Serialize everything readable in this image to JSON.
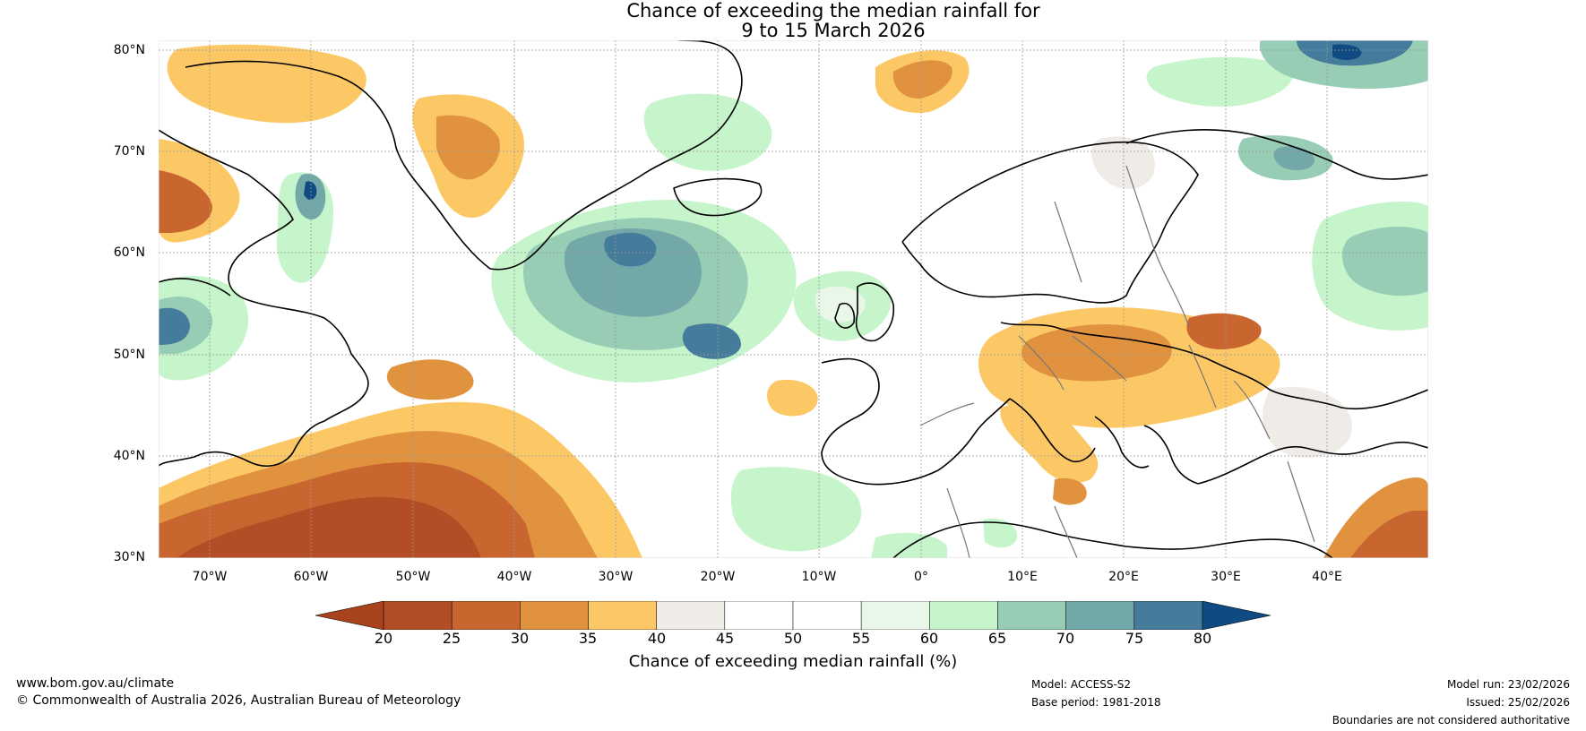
{
  "header": {
    "title_line1": "Chance of exceeding the median rainfall for",
    "title_line2": "9 to 15 March 2026"
  },
  "map": {
    "lat_labels": [
      "80°N",
      "70°N",
      "60°N",
      "50°N",
      "40°N",
      "30°N"
    ],
    "lon_labels": [
      "70°W",
      "60°W",
      "50°W",
      "40°W",
      "30°W",
      "20°W",
      "10°W",
      "0°",
      "10°E",
      "20°E",
      "30°E",
      "40°E"
    ],
    "lat_range": [
      30,
      80
    ],
    "lon_range": [
      -75,
      50
    ]
  },
  "colorbar": {
    "ticks": [
      "20",
      "25",
      "30",
      "35",
      "40",
      "45",
      "50",
      "55",
      "60",
      "65",
      "70",
      "75",
      "80"
    ],
    "colors": [
      "#a8431e",
      "#b34d25",
      "#c9662f",
      "#e0923f",
      "#fcc866",
      "#efebe7",
      "#ffffff",
      "#ffffff",
      "#e8f7e8",
      "#c6f5cc",
      "#98cdb5",
      "#73a8a8",
      "#457b9b",
      "#104a82"
    ],
    "label": "Chance of exceeding median rainfall (%)"
  },
  "footer": {
    "website": "www.bom.gov.au/climate",
    "copyright": "© Commonwealth of Australia 2026, Australian Bureau of Meteorology",
    "model": "Model: ACCESS-S2",
    "base_period": "Base period: 1981-2018",
    "model_run": "Model run: 23/02/2026",
    "issued": "Issued: 25/02/2026",
    "disclaimer": "Boundaries are not considered authoritative"
  }
}
